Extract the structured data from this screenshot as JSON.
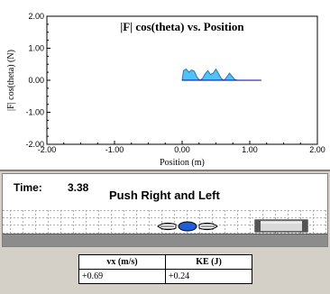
{
  "graph": {
    "title": "|F| cos(theta) vs. Position",
    "xlabel": "Position (m)",
    "ylabel": "|F| cos(theta) (N)"
  },
  "chart_data": {
    "type": "area",
    "title": "|F| cos(theta) vs. Position",
    "xlabel": "Position (m)",
    "ylabel": "|F| cos(theta) (N)",
    "xlim": [
      -2,
      2
    ],
    "ylim": [
      -2,
      2
    ],
    "x_ticks": [
      "-2.00",
      "-1.00",
      "0.00",
      "1.00",
      "2.00"
    ],
    "y_ticks": [
      "2.00",
      "1.00",
      "0.00",
      "-1.00",
      "-2.00"
    ],
    "fill_color": "#4fc3f7",
    "x": [
      0.0,
      0.02,
      0.06,
      0.1,
      0.14,
      0.18,
      0.22,
      0.26,
      0.3,
      0.34,
      0.38,
      0.42,
      0.46,
      0.5,
      0.54,
      0.58,
      0.62,
      0.66,
      0.7,
      0.74,
      0.78,
      0.82,
      0.86,
      0.9,
      0.94,
      1.0,
      1.1,
      1.17
    ],
    "y": [
      0.0,
      0.3,
      0.35,
      0.25,
      0.32,
      0.28,
      0.1,
      0.0,
      0.05,
      0.2,
      0.3,
      0.18,
      0.22,
      0.35,
      0.2,
      0.05,
      0.0,
      0.1,
      0.22,
      0.12,
      0.02,
      0.0,
      0.0,
      0.0,
      0.0,
      0.0,
      0.0,
      0.0
    ]
  },
  "sim": {
    "time_label": "Time:",
    "time_value": "3.38",
    "action_text": "Push Right and Left"
  },
  "readouts": {
    "headers": [
      "vx (m/s)",
      "KE (J)"
    ],
    "values": [
      "+0.69",
      "+0.24"
    ]
  }
}
